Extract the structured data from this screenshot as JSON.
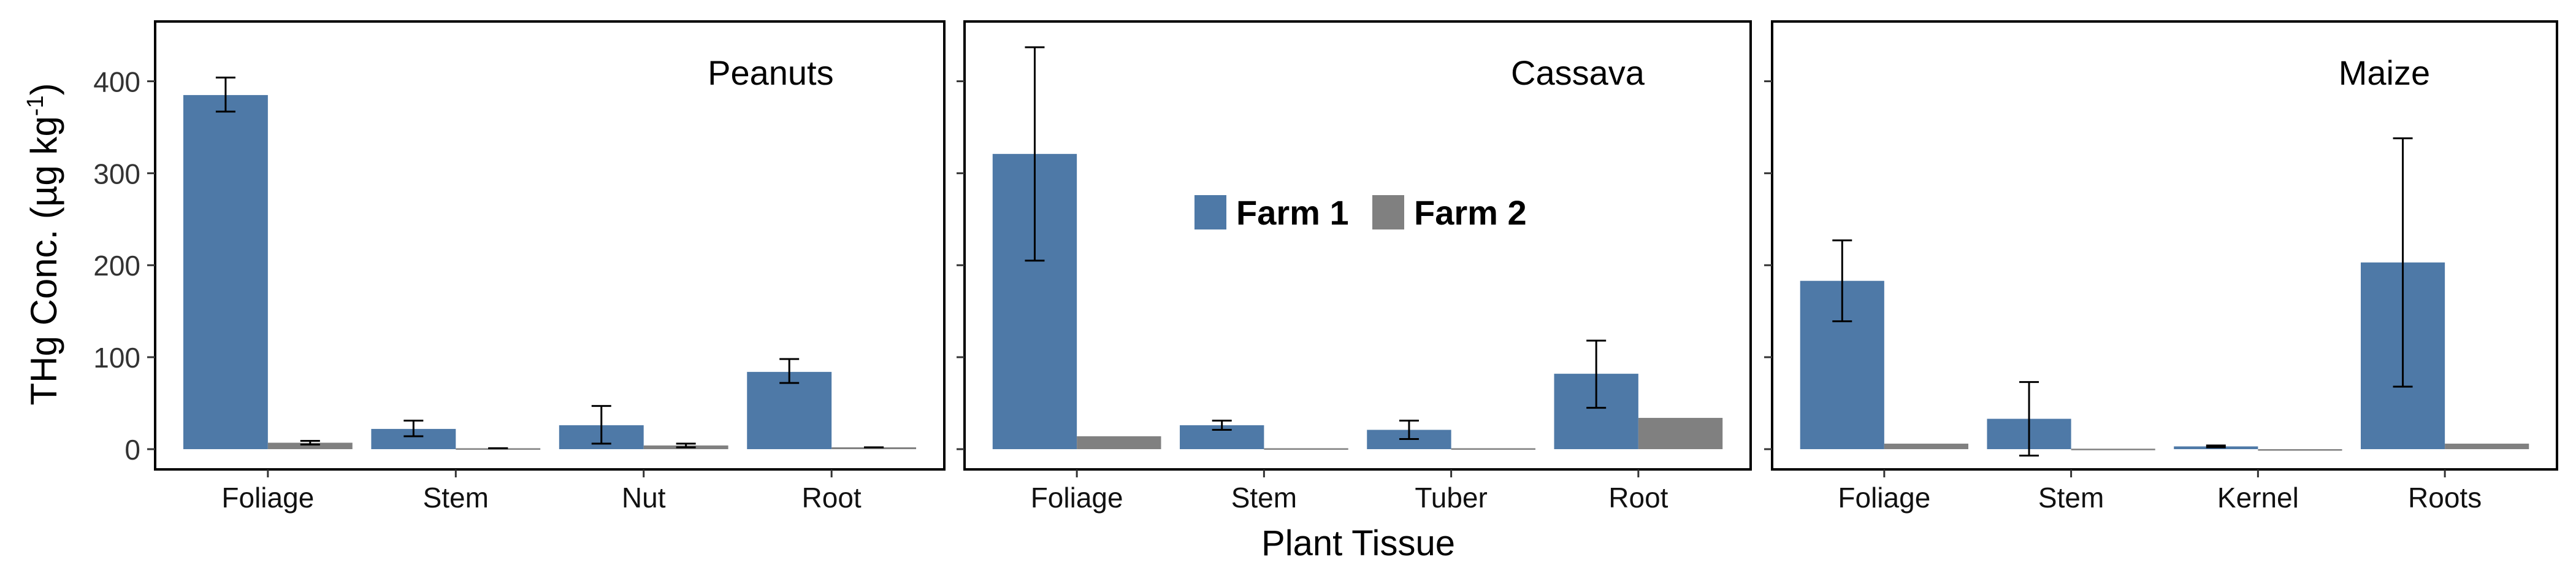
{
  "chart_data": {
    "type": "bar",
    "ylabel": "THg Conc. (µg kg",
    "ylabel_sup": "-1",
    "ylabel_close": ")",
    "xlabel": "Plant Tissue",
    "ylim": [
      -22,
      465
    ],
    "yticks": [
      0,
      100,
      200,
      300,
      400
    ],
    "legend": {
      "placement": "inside-center",
      "entries": [
        "Farm 1",
        "Farm 2"
      ]
    },
    "colors": {
      "Farm 1": "#4e79a7",
      "Farm 2": "#808080"
    },
    "grid": false,
    "panels": [
      {
        "title": "Peanuts",
        "categories": [
          "Foliage",
          "Stem",
          "Nut",
          "Root"
        ],
        "series": [
          {
            "name": "Farm 1",
            "values": [
              385,
              22,
              26,
              84
            ],
            "err_low": [
              367,
              14,
              6,
              72
            ],
            "err_high": [
              404,
              31,
              47,
              98
            ]
          },
          {
            "name": "Farm 2",
            "values": [
              7,
              1,
              4,
              2
            ],
            "err_low": [
              5,
              1,
              2,
              2
            ],
            "err_high": [
              9,
              1,
              6,
              2
            ]
          }
        ]
      },
      {
        "title": "Cassava",
        "categories": [
          "Foliage",
          "Stem",
          "Tuber",
          "Root"
        ],
        "series": [
          {
            "name": "Farm 1",
            "values": [
              321,
              26,
              21,
              82
            ],
            "err_low": [
              205,
              21,
              11,
              45
            ],
            "err_high": [
              437,
              31,
              31,
              118
            ]
          },
          {
            "name": "Farm 2",
            "values": [
              14,
              1,
              1,
              34
            ],
            "err_low": [
              null,
              null,
              null,
              null
            ],
            "err_high": [
              null,
              null,
              null,
              null
            ]
          }
        ]
      },
      {
        "title": "Maize",
        "categories": [
          "Foliage",
          "Stem",
          "Kernel",
          "Roots"
        ],
        "series": [
          {
            "name": "Farm 1",
            "values": [
              183,
              33,
              3,
              203
            ],
            "err_low": [
              139,
              -7,
              2,
              68
            ],
            "err_high": [
              227,
              73,
              4,
              338
            ]
          },
          {
            "name": "Farm 2",
            "values": [
              6,
              0.5,
              0,
              6
            ],
            "err_low": [
              null,
              null,
              null,
              null
            ],
            "err_high": [
              null,
              null,
              null,
              null
            ]
          }
        ]
      }
    ]
  }
}
